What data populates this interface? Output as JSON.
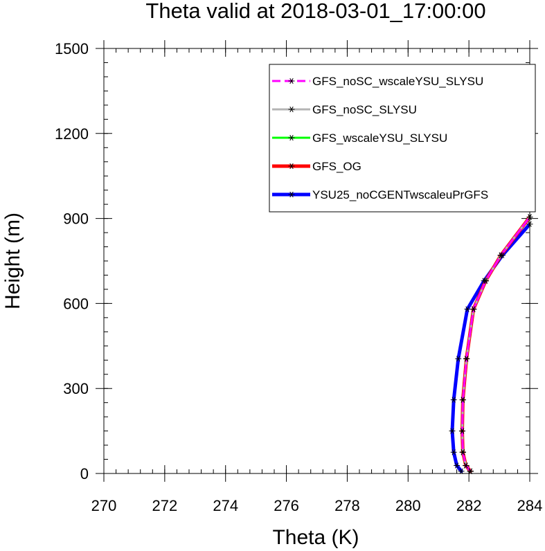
{
  "chart_data": {
    "type": "line",
    "title": "Theta valid at 2018-03-01_17:00:00",
    "xlabel": "Theta (K)",
    "ylabel": "Height (m)",
    "xlim": [
      270,
      284
    ],
    "ylim": [
      0,
      1500
    ],
    "xticks": [
      270,
      272,
      274,
      276,
      278,
      280,
      282,
      284
    ],
    "yticks": [
      0,
      300,
      600,
      900,
      1200,
      1500
    ],
    "xtick_labels": [
      "270",
      "272",
      "274",
      "276",
      "278",
      "280",
      "282",
      "284"
    ],
    "ytick_labels": [
      "0",
      "300",
      "600",
      "900",
      "1200",
      "1500"
    ],
    "grid": false,
    "legend_position": "top-right",
    "series": [
      {
        "name": "YSU25_noCGENTwscaleuPrGFS",
        "color": "#0000ff",
        "style": "solid",
        "x": [
          281.75,
          281.6,
          281.5,
          281.45,
          281.5,
          281.65,
          281.95,
          282.5,
          283.1,
          284.0
        ],
        "y": [
          8,
          28,
          75,
          150,
          260,
          405,
          580,
          680,
          770,
          880
        ]
      },
      {
        "name": "GFS_OG",
        "color": "#ff0000",
        "style": "solid",
        "x": [
          282.05,
          281.9,
          281.8,
          281.78,
          281.8,
          281.92,
          282.15,
          282.55,
          283.05,
          284.0
        ],
        "y": [
          8,
          28,
          75,
          150,
          260,
          405,
          580,
          680,
          770,
          905
        ]
      },
      {
        "name": "GFS_wscaleYSU_SLYSU",
        "color": "#00ff00",
        "style": "solid",
        "x": [
          282.05,
          281.9,
          281.8,
          281.78,
          281.8,
          281.92,
          282.15,
          282.55,
          283.05,
          284.0
        ],
        "y": [
          8,
          28,
          75,
          150,
          260,
          405,
          580,
          680,
          770,
          905
        ]
      },
      {
        "name": "GFS_noSC_SLYSU",
        "color": "#b4b4b4",
        "style": "solid",
        "x": [
          282.05,
          281.9,
          281.8,
          281.78,
          281.8,
          281.92,
          282.15,
          282.55,
          283.05,
          284.0
        ],
        "y": [
          8,
          28,
          75,
          150,
          260,
          405,
          580,
          680,
          770,
          905
        ]
      },
      {
        "name": "GFS_noSC_wscaleYSU_SLYSU",
        "color": "#ff00ff",
        "style": "dashed",
        "x": [
          282.05,
          281.9,
          281.8,
          281.78,
          281.8,
          281.92,
          282.15,
          282.55,
          283.05,
          284.0
        ],
        "y": [
          8,
          28,
          75,
          150,
          260,
          405,
          580,
          680,
          770,
          905
        ]
      }
    ],
    "legend_order": [
      "GFS_noSC_wscaleYSU_SLYSU",
      "GFS_noSC_SLYSU",
      "GFS_wscaleYSU_SLYSU",
      "GFS_OG",
      "YSU25_noCGENTwscaleuPrGFS"
    ]
  }
}
